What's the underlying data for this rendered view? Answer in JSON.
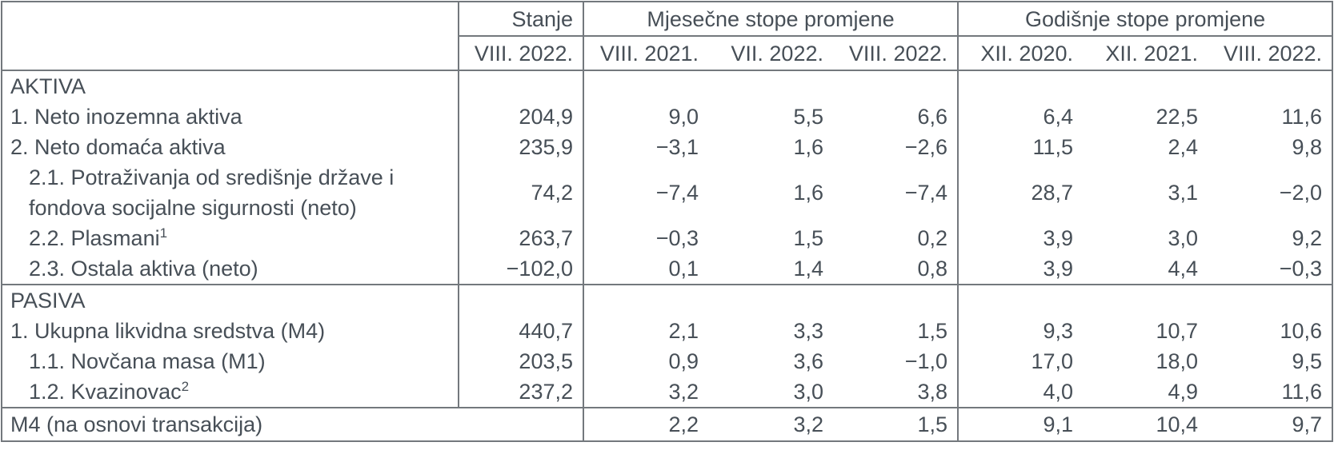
{
  "table": {
    "header": {
      "stanje_group": "Stanje",
      "stanje_col": "VIII. 2022.",
      "monthly_group": "Mjesečne stope promjene",
      "monthly_cols": [
        "VIII. 2021.",
        "VII. 2022.",
        "VIII. 2022."
      ],
      "yearly_group": "Godišnje stope promjene",
      "yearly_cols": [
        "XII. 2020.",
        "XII. 2021.",
        "VIII. 2022."
      ]
    },
    "rows": [
      {
        "type": "section",
        "label": "AKTIVA"
      },
      {
        "type": "data",
        "indent": 0,
        "label": "1. Neto inozemna aktiva",
        "values": [
          "204,9",
          "9,0",
          "5,5",
          "6,6",
          "6,4",
          "22,5",
          "11,6"
        ]
      },
      {
        "type": "data",
        "indent": 0,
        "label": "2. Neto domaća aktiva",
        "values": [
          "235,9",
          "−3,1",
          "1,6",
          "−2,6",
          "11,5",
          "2,4",
          "9,8"
        ]
      },
      {
        "type": "data",
        "indent": 1,
        "label": "2.1. Potraživanja od središnje države i fondova socijalne sigurnosti (neto)",
        "values": [
          "74,2",
          "−7,4",
          "1,6",
          "−7,4",
          "28,7",
          "3,1",
          "−2,0"
        ]
      },
      {
        "type": "data",
        "indent": 1,
        "label": "2.2. Plasmani",
        "sup": "1",
        "values": [
          "263,7",
          "−0,3",
          "1,5",
          "0,2",
          "3,9",
          "3,0",
          "9,2"
        ]
      },
      {
        "type": "data",
        "indent": 1,
        "label": "2.3. Ostala aktiva (neto)",
        "values": [
          "−102,0",
          "0,1",
          "1,4",
          "0,8",
          "3,9",
          "4,4",
          "−0,3"
        ]
      },
      {
        "type": "section",
        "label": "PASIVA",
        "divider_above": true
      },
      {
        "type": "data",
        "indent": 0,
        "label": "1. Ukupna likvidna sredstva (M4)",
        "values": [
          "440,7",
          "2,1",
          "3,3",
          "1,5",
          "9,3",
          "10,7",
          "10,6"
        ]
      },
      {
        "type": "data",
        "indent": 1,
        "label": "1.1. Novčana masa (M1)",
        "values": [
          "203,5",
          "0,9",
          "3,6",
          "−1,0",
          "17,0",
          "18,0",
          "9,5"
        ]
      },
      {
        "type": "data",
        "indent": 1,
        "label": "1.2. Kvazinovac",
        "sup": "2",
        "values": [
          "237,2",
          "3,2",
          "3,0",
          "3,8",
          "4,0",
          "4,9",
          "11,6"
        ]
      },
      {
        "type": "footer",
        "label": "M4 (na osnovi transakcija)",
        "values": [
          "2,2",
          "3,2",
          "1,5",
          "9,1",
          "10,4",
          "9,7"
        ]
      }
    ],
    "colors": {
      "text": "#474f57",
      "border": "#73787d"
    }
  }
}
